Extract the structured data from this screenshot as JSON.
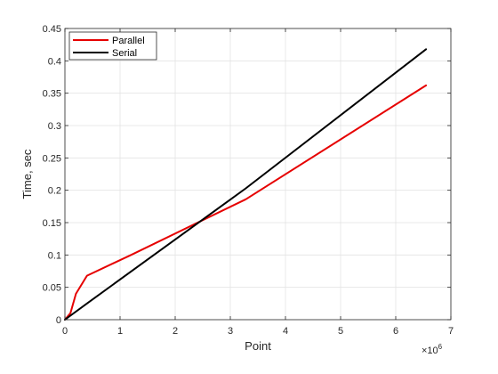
{
  "chart_data": {
    "type": "line",
    "title": "",
    "xlabel": "Point",
    "ylabel": "Time, sec",
    "x_exponent_base": "×10",
    "x_exponent_power": "6",
    "xlim": [
      0,
      7
    ],
    "ylim": [
      0,
      0.45
    ],
    "xticks": [
      0,
      1,
      2,
      3,
      4,
      5,
      6,
      7
    ],
    "xtick_labels": [
      "0",
      "1",
      "2",
      "3",
      "4",
      "5",
      "6",
      "7"
    ],
    "yticks": [
      0,
      0.05,
      0.1,
      0.15,
      0.2,
      0.25,
      0.3,
      0.35,
      0.4,
      0.45
    ],
    "ytick_labels": [
      "0",
      "0.05",
      "0.1",
      "0.15",
      "0.2",
      "0.25",
      "0.3",
      "0.35",
      "0.4",
      "0.45"
    ],
    "grid": true,
    "legend_position": "top-left",
    "series": [
      {
        "name": "Parallel",
        "color": "#e60000",
        "points": [
          [
            0,
            0
          ],
          [
            0.1,
            0.01
          ],
          [
            0.2,
            0.04
          ],
          [
            0.4,
            0.068
          ],
          [
            1.2,
            0.1
          ],
          [
            3.28,
            0.186
          ],
          [
            6.55,
            0.362
          ]
        ]
      },
      {
        "name": "Serial",
        "color": "#000000",
        "points": [
          [
            0,
            0
          ],
          [
            0.4,
            0.025
          ],
          [
            3.28,
            0.203
          ],
          [
            6.55,
            0.418
          ]
        ]
      }
    ]
  }
}
